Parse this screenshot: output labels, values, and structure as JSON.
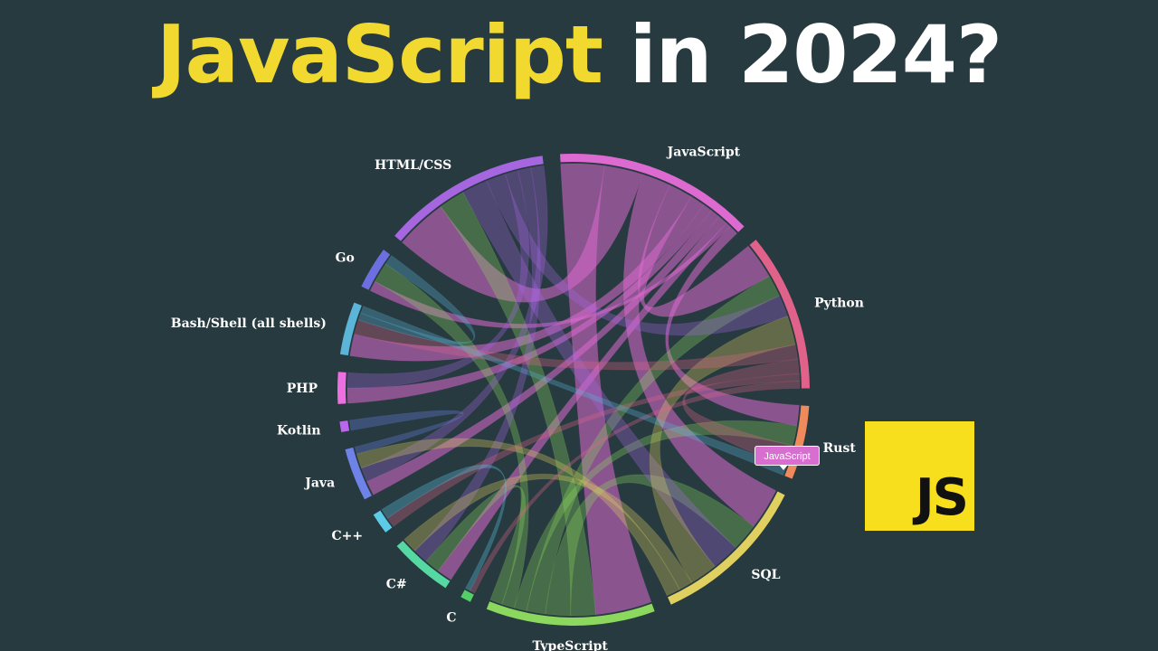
{
  "headline": {
    "accent_text": "JavaScript",
    "rest_text": "in 2024?",
    "accent_color": "#f2d930",
    "rest_color": "#ffffff"
  },
  "chord_diagram": {
    "nodes": [
      {
        "id": "bash",
        "label": "Bash/Shell (all shells)",
        "color": "#5bb5d8",
        "weight": 5
      },
      {
        "id": "go",
        "label": "Go",
        "color": "#6d6fe0",
        "weight": 4
      },
      {
        "id": "htmlcss",
        "label": "HTML/CSS",
        "color": "#a566e0",
        "weight": 16
      },
      {
        "id": "javascript",
        "label": "JavaScript",
        "color": "#dd6ad0",
        "weight": 19
      },
      {
        "id": "python",
        "label": "Python",
        "color": "#e0628a",
        "weight": 15
      },
      {
        "id": "rust",
        "label": "Rust",
        "color": "#ee8a5c",
        "weight": 7
      },
      {
        "id": "sql",
        "label": "SQL",
        "color": "#dfd060",
        "weight": 15
      },
      {
        "id": "typescript",
        "label": "TypeScript",
        "color": "#8cd85e",
        "weight": 16
      },
      {
        "id": "c",
        "label": "C",
        "color": "#52d067",
        "weight": 1
      },
      {
        "id": "csharp",
        "label": "C#",
        "color": "#55d8a2",
        "weight": 6
      },
      {
        "id": "cpp",
        "label": "C++",
        "color": "#5ccbe8",
        "weight": 2
      },
      {
        "id": "java",
        "label": "Java",
        "color": "#6e82e8",
        "weight": 5
      },
      {
        "id": "kotlin",
        "label": "Kotlin",
        "color": "#b868e8",
        "weight": 1
      },
      {
        "id": "php",
        "label": "PHP",
        "color": "#ee70e0",
        "weight": 3
      }
    ],
    "links": [
      [
        "javascript",
        "typescript",
        9
      ],
      [
        "javascript",
        "htmlcss",
        8
      ],
      [
        "javascript",
        "sql",
        6
      ],
      [
        "javascript",
        "python",
        5
      ],
      [
        "javascript",
        "bash",
        3
      ],
      [
        "javascript",
        "php",
        2
      ],
      [
        "javascript",
        "java",
        2
      ],
      [
        "javascript",
        "csharp",
        2
      ],
      [
        "javascript",
        "go",
        1
      ],
      [
        "javascript",
        "rust",
        2
      ],
      [
        "typescript",
        "htmlcss",
        4
      ],
      [
        "typescript",
        "sql",
        4
      ],
      [
        "typescript",
        "python",
        3
      ],
      [
        "typescript",
        "rust",
        2
      ],
      [
        "typescript",
        "go",
        2
      ],
      [
        "typescript",
        "csharp",
        2
      ],
      [
        "htmlcss",
        "sql",
        4
      ],
      [
        "htmlcss",
        "python",
        3
      ],
      [
        "htmlcss",
        "php",
        2
      ],
      [
        "htmlcss",
        "csharp",
        2
      ],
      [
        "htmlcss",
        "java",
        2
      ],
      [
        "sql",
        "python",
        4
      ],
      [
        "sql",
        "csharp",
        2
      ],
      [
        "sql",
        "java",
        2
      ],
      [
        "python",
        "bash",
        2
      ],
      [
        "python",
        "rust",
        2
      ],
      [
        "python",
        "cpp",
        1
      ],
      [
        "python",
        "c",
        1
      ],
      [
        "bash",
        "go",
        1
      ],
      [
        "bash",
        "rust",
        1
      ],
      [
        "java",
        "kotlin",
        1
      ],
      [
        "cpp",
        "c",
        1
      ]
    ]
  },
  "tooltip": {
    "text": "JavaScript"
  },
  "logo": {
    "text": "JS",
    "background": "#f7df1e",
    "text_color": "#111111"
  }
}
